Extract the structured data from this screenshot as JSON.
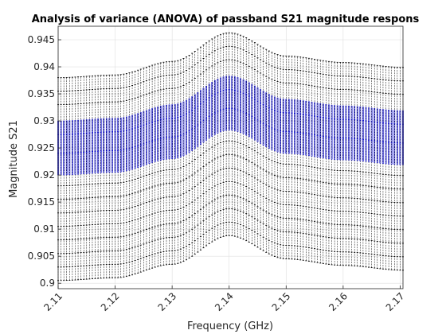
{
  "chart_data": {
    "type": "box",
    "title": "Analysis of variance (ANOVA) of passband S21 magnitude respons",
    "xlabel": "Frequency (GHz)",
    "ylabel": "Magnitude S21",
    "xlim": [
      2.11,
      2.1705
    ],
    "ylim": [
      0.899,
      0.9475
    ],
    "xticks": [
      "2.11",
      "2.12",
      "2.13",
      "2.14",
      "2.15",
      "2.16",
      "2.17"
    ],
    "yticks": [
      "0.9",
      "0.905",
      "0.91",
      "0.915",
      "0.92",
      "0.925",
      "0.93",
      "0.935",
      "0.94",
      "0.945"
    ],
    "grid": true,
    "x_start": 2.11,
    "x_end": 2.1705,
    "x_step": 0.0005,
    "mean_profile": [
      {
        "x": 2.11,
        "y": 0.9255
      },
      {
        "x": 2.12,
        "y": 0.926
      },
      {
        "x": 2.13,
        "y": 0.9285
      },
      {
        "x": 2.14,
        "y": 0.9338
      },
      {
        "x": 2.15,
        "y": 0.9295
      },
      {
        "x": 2.16,
        "y": 0.9283
      },
      {
        "x": 2.1705,
        "y": 0.9274
      }
    ],
    "box_offsets": {
      "q1": -0.0055,
      "median_marks": [
        -0.0015,
        0.002
      ],
      "q3": 0.0045
    },
    "whisker_offsets": [
      -0.025,
      -0.0225,
      -0.02,
      -0.0175,
      -0.015,
      -0.0125,
      -0.01,
      -0.0075,
      0.0075,
      0.01,
      0.0125
    ],
    "colors": {
      "box": "#0000cc",
      "whisker": "#000000",
      "grid": "#dfdfdf",
      "axes": "#262626"
    }
  }
}
